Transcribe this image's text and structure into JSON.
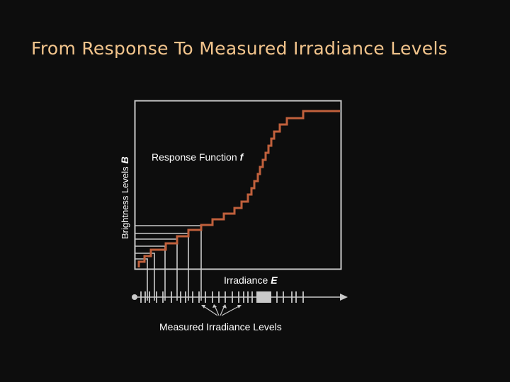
{
  "title": "From Response To Measured Irradiance Levels",
  "diagram": {
    "y_axis_label": {
      "text": "Brightness Levels",
      "symbol": "B"
    },
    "curve_label": {
      "text": "Response Function",
      "symbol": "f"
    },
    "x_axis_label": {
      "text": "Irradiance",
      "symbol": "E"
    },
    "bottom_label": "Measured Irradiance Levels"
  },
  "colors": {
    "curve": "#c0603c",
    "frame": "#c9c9c9",
    "guide": "#c9c9c9",
    "title": "#f2c48c"
  }
}
